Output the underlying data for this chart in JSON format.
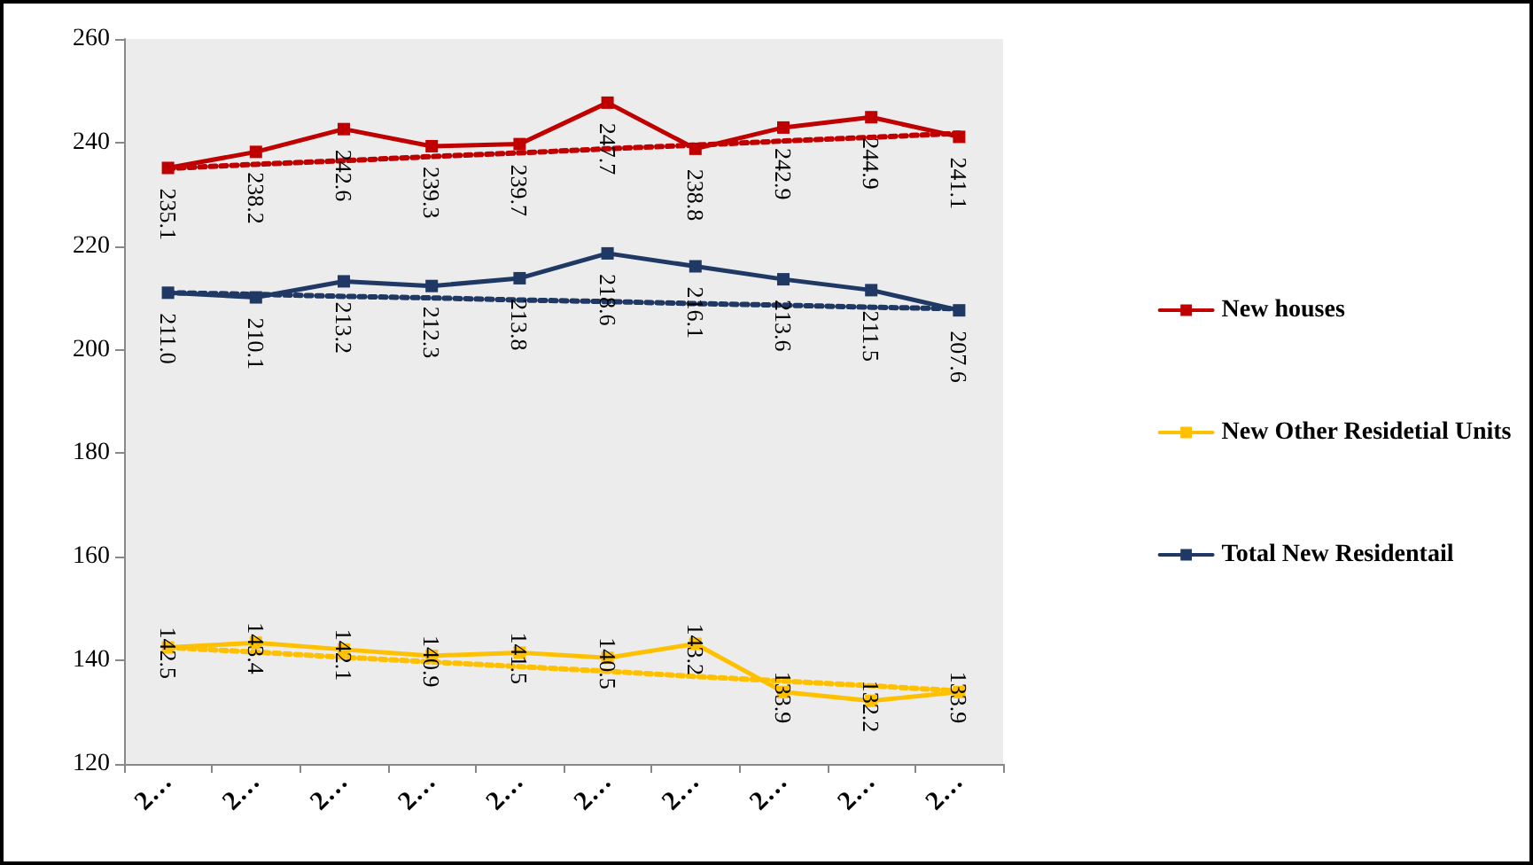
{
  "chart_data": {
    "type": "line",
    "categories": [
      "2…",
      "2…",
      "2…",
      "2…",
      "2…",
      "2…",
      "2…",
      "2…",
      "2…",
      "2…"
    ],
    "series": [
      {
        "name": "New houses",
        "color": "#c00000",
        "values": [
          235.1,
          238.2,
          242.6,
          239.3,
          239.7,
          247.7,
          238.8,
          242.9,
          244.9,
          241.1
        ],
        "value_labels": [
          "235.1",
          "238.2",
          "242.6",
          "239.3",
          "239.7",
          "247.7",
          "238.8",
          "242.9",
          "244.9",
          "241.1"
        ]
      },
      {
        "name": "New Other Residetial Units",
        "color": "#ffc000",
        "values": [
          142.5,
          143.4,
          142.1,
          140.9,
          141.5,
          140.5,
          143.2,
          133.9,
          132.2,
          133.9
        ],
        "value_labels": [
          "142.5",
          "143.4",
          "142.1",
          "140.9",
          "141.5",
          "140.5",
          "143.2",
          "133.9",
          "132.2",
          "133.9"
        ]
      },
      {
        "name": "Total New Residentail",
        "color": "#1f3864",
        "values": [
          211.0,
          210.1,
          213.2,
          212.3,
          213.8,
          218.6,
          216.1,
          213.6,
          211.5,
          207.6
        ],
        "value_labels": [
          "211.0",
          "210.1",
          "213.2",
          "212.3",
          "213.8",
          "218.6",
          "216.1",
          "213.6",
          "211.5",
          "207.6"
        ]
      },
      {
        "color": "#c00000",
        "marker": "none",
        "line_style": "dotted",
        "values": [
          235.0,
          235.8,
          236.5,
          237.3,
          238.0,
          238.8,
          239.5,
          240.3,
          241.0,
          241.8
        ]
      },
      {
        "color": "#ffc000",
        "marker": "none",
        "line_style": "dotted",
        "values": [
          142.5,
          141.6,
          140.6,
          139.7,
          138.8,
          137.9,
          136.9,
          136.0,
          135.1,
          134.1
        ]
      },
      {
        "color": "#1f3864",
        "marker": "none",
        "line_style": "dotted",
        "values": [
          211.0,
          210.7,
          210.3,
          210.0,
          209.6,
          209.3,
          208.9,
          208.6,
          208.2,
          207.9
        ]
      }
    ],
    "ylim": [
      120,
      260
    ],
    "yticks": [
      120,
      140,
      160,
      180,
      200,
      220,
      240,
      260
    ],
    "grid": false,
    "legend": "right",
    "marker": "square",
    "line_style": "solid"
  }
}
